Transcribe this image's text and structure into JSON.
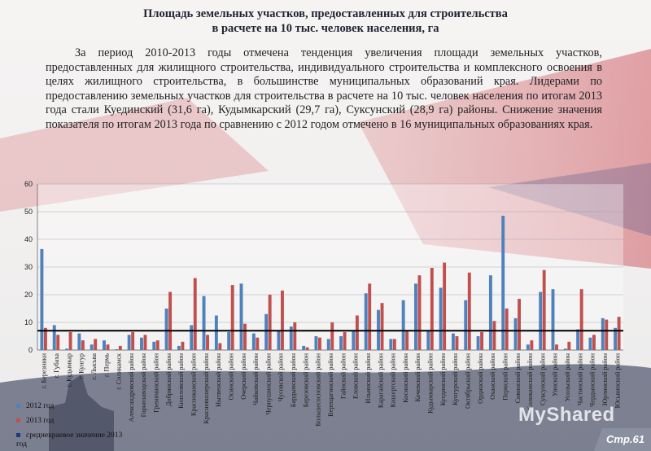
{
  "header": {
    "title_line1": "Площадь земельных участков, предоставленных для строительства",
    "title_line2": "в расчете на 10 тыс. человек населения, га"
  },
  "description": "За период 2010-2013 годы отмечена тенденция увеличения площади земельных участков, предоставленных для жилищного строительства, индивидуального строительства и комплексного освоения в целях жилищного строительства, в большинстве муниципальных образований края. Лидерами по предоставлению земельных участков для строительства в расчете на 10 тыс. человек населения по итогам 2013 года стали Куединский (31,6 га), Кудымкарский (29,7 га), Суксунский (28,9 га) районы. Снижение значения показателя по итогам 2013 года по сравнению с 2012 годом отмечено в 16 муниципальных образованиях края.",
  "footer": {
    "watermark": "MyShared",
    "page_number": "Стр.61"
  },
  "colors": {
    "series_2012": "#4f81bd",
    "series_2013": "#c0504d",
    "average_line": "#000000",
    "legend_average": "#1f3a7a"
  },
  "chart_data": {
    "type": "bar",
    "title": "",
    "xlabel": "",
    "ylabel": "",
    "ylim": [
      0,
      60
    ],
    "yticks": [
      0,
      10,
      20,
      30,
      40,
      50,
      60
    ],
    "grid": true,
    "legend_position": "bottom-left",
    "categories": [
      "г. Березники",
      "г. Губаха",
      "г. Кудымкар",
      "г. Кунгур",
      "г. Лысьва",
      "г. Пермь",
      "г. Соликамск",
      "Александровский район",
      "Горнозаводский район",
      "Гремячинский район",
      "Добрянский район",
      "Кизеловский район",
      "Краснокамский район",
      "Красновишерский район",
      "Нытвенский район",
      "Осинский район",
      "Очерский район",
      "Чайковский район",
      "Чернушинский район",
      "Чусовской район",
      "Бардымский район",
      "Березовский район",
      "Большесосновский район",
      "Верещагинский район",
      "Гайнский район",
      "Еловский район",
      "Ильинский район",
      "Карагайский район",
      "Кишертский район",
      "Косинский район",
      "Кочевский район",
      "Кудымкарский район",
      "Куединский район",
      "Кунгурский район",
      "Октябрьский район",
      "Ординский район",
      "Оханский район",
      "Пермский район",
      "Сивинский район",
      "Соликамский район",
      "Суксунский район",
      "Уинский район",
      "Усольский район",
      "Частинский район",
      "Чердынский район",
      "Юрлинский район",
      "Юсьвинский район"
    ],
    "series": [
      {
        "name": "2012 год",
        "color": "#4f81bd",
        "values": [
          36.5,
          9,
          0.5,
          6,
          2,
          3.5,
          0.3,
          5.5,
          4.5,
          3,
          15,
          1.5,
          9,
          19.5,
          12.5,
          6.5,
          24,
          6,
          13,
          7,
          8.5,
          1.5,
          5,
          4,
          5,
          7,
          20.5,
          14.5,
          4,
          18,
          24,
          7,
          22.5,
          6,
          18,
          5,
          27,
          48.5,
          11.5,
          2,
          21,
          22,
          0.5,
          7.5,
          4.5,
          11.5,
          8
        ]
      },
      {
        "name": "2013 год",
        "color": "#c0504d",
        "values": [
          8,
          5.5,
          6.5,
          3.5,
          4,
          2,
          1.5,
          6.5,
          5.5,
          3.5,
          21,
          3,
          26,
          5.5,
          2.5,
          23.5,
          9.5,
          4.5,
          20,
          21.5,
          10,
          1,
          4.5,
          10,
          6.5,
          12.5,
          24,
          17,
          4,
          7,
          27,
          29.7,
          31.6,
          5,
          28,
          6.5,
          10.5,
          15,
          18.5,
          3.5,
          28.9,
          2,
          3,
          22,
          5.5,
          11,
          12
        ]
      }
    ],
    "reference_line": {
      "name": "среднекраевое значение 2013 год",
      "value": 7
    }
  }
}
